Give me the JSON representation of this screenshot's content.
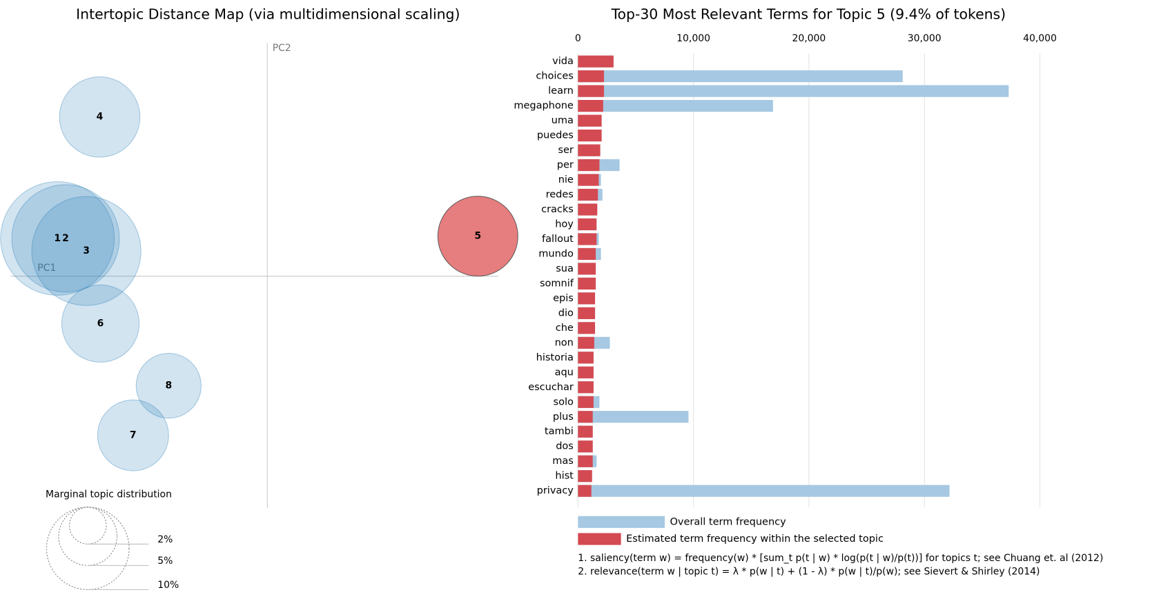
{
  "chart_data": [
    {
      "type": "bubble",
      "title": "Intertopic Distance Map (via multidimensional scaling)",
      "xlabel": "PC1",
      "ylabel": "PC2",
      "xlim": [
        -0.346,
        0.346
      ],
      "ylim": [
        -0.318,
        0.318
      ],
      "points": [
        {
          "label": "1",
          "x": -0.283,
          "y": 0.051,
          "size": 19.0
        },
        {
          "label": "2",
          "x": -0.272,
          "y": 0.051,
          "size": 17.0
        },
        {
          "label": "3",
          "x": -0.244,
          "y": 0.034,
          "size": 17.5
        },
        {
          "label": "4",
          "x": -0.226,
          "y": 0.215,
          "size": 9.5
        },
        {
          "label": "5",
          "x": 0.284,
          "y": 0.054,
          "size": 9.4
        },
        {
          "label": "6",
          "x": -0.225,
          "y": -0.064,
          "size": 8.8
        },
        {
          "label": "7",
          "x": -0.181,
          "y": -0.215,
          "size": 7.4
        },
        {
          "label": "8",
          "x": -0.133,
          "y": -0.148,
          "size": 6.2
        }
      ],
      "color": "#1f77b4",
      "selected_color": "#d62728",
      "selected": "5",
      "size_legend": {
        "title": "Marginal topic distribution",
        "ticks": [
          {
            "value": 2,
            "label": "2%"
          },
          {
            "value": 5,
            "label": "5%"
          },
          {
            "value": 10,
            "label": "10%"
          }
        ]
      }
    },
    {
      "type": "hbar",
      "title": "Top-30 Most Relevant Terms for Topic 5 (9.4% of tokens)",
      "categories": [
        "vida",
        "choices",
        "learn",
        "megaphone",
        "uma",
        "puedes",
        "ser",
        "per",
        "nie",
        "redes",
        "cracks",
        "hoy",
        "fallout",
        "mundo",
        "sua",
        "somnif",
        "epis",
        "dio",
        "che",
        "non",
        "historia",
        "aqu",
        "escuchar",
        "solo",
        "plus",
        "tambi",
        "dos",
        "mas",
        "hist",
        "privacy"
      ],
      "series": [
        {
          "name": "Overall term frequency",
          "color": "#a6c8e2",
          "values": [
            3080,
            28120,
            37300,
            16890,
            2050,
            2050,
            1930,
            3600,
            1990,
            2120,
            1670,
            1610,
            1800,
            1990,
            1540,
            1540,
            1480,
            1480,
            1480,
            2760,
            1350,
            1350,
            1350,
            1860,
            9570,
            1280,
            1280,
            1610,
            1220,
            32170
          ]
        },
        {
          "name": "Estimated term frequency within the selected topic",
          "color": "#d44a52",
          "values": [
            3080,
            2250,
            2250,
            2180,
            2050,
            2050,
            1930,
            1860,
            1800,
            1730,
            1670,
            1610,
            1610,
            1540,
            1540,
            1540,
            1480,
            1480,
            1480,
            1410,
            1350,
            1350,
            1350,
            1350,
            1280,
            1280,
            1280,
            1280,
            1220,
            1160
          ]
        }
      ],
      "xlim": [
        0,
        40000
      ],
      "xticks": [
        0,
        {
          "value": 10000,
          "label": "10,000"
        },
        {
          "value": 20000,
          "label": "20,000"
        },
        {
          "value": 30000,
          "label": "30,000"
        },
        {
          "value": 40000,
          "label": "40,000"
        }
      ],
      "grid": true,
      "footnotes": [
        "1. saliency(term w) = frequency(w) * [sum_t p(t | w) * log(p(t | w)/p(t))] for topics t; see Chuang et. al (2012)",
        "2. relevance(term w | topic t) = λ * p(w | t) + (1 - λ) * p(w | t)/p(w); see Sievert & Shirley (2014)"
      ]
    }
  ]
}
